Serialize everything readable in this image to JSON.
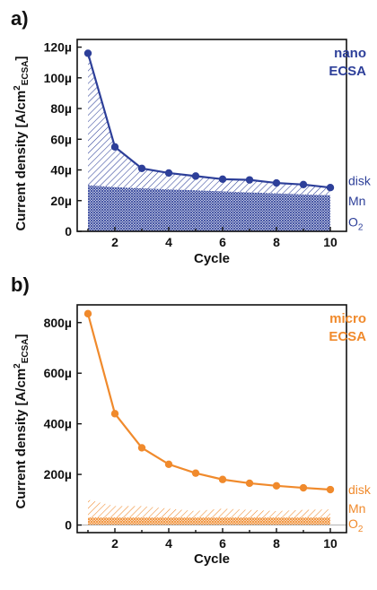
{
  "chart_data": [
    {
      "panel_label": "a)",
      "type": "line",
      "xlabel": "Cycle",
      "ylabel": "Current density [A/cm²ECSA]",
      "ylabel_parts": {
        "main": "Current density [A/cm",
        "sup": "2",
        "sub": "ECSA",
        "close": "]"
      },
      "xlim": [
        0.6,
        10.6
      ],
      "ylim": [
        0,
        125
      ],
      "x_ticks": [
        2,
        4,
        6,
        8,
        10
      ],
      "y_ticks": [
        0,
        20,
        40,
        60,
        80,
        100,
        120
      ],
      "y_tick_labels": [
        "0",
        "20µ",
        "40µ",
        "60µ",
        "80µ",
        "100µ",
        "120µ"
      ],
      "legend_lines": [
        "nano",
        "ECSA"
      ],
      "legend_position": "top-right",
      "color": "#2d3f99",
      "series": [
        {
          "x": [
            1,
            2,
            3,
            4,
            5,
            6,
            7,
            8,
            9,
            10
          ],
          "y": [
            116,
            55,
            41,
            38,
            36,
            34,
            33.5,
            31.5,
            30.5,
            28.5
          ]
        }
      ],
      "area_layers": [
        {
          "label": "disk",
          "y": [
            116,
            55,
            41,
            38,
            36,
            34,
            33.5,
            31.5,
            30.5,
            28.5
          ],
          "pattern": "diagonal-hatch"
        },
        {
          "label": "Mn",
          "y": [
            30,
            28.8,
            28,
            27.3,
            26.7,
            26,
            25.3,
            24.7,
            24,
            23.5
          ],
          "pattern": "diagonal-hatch-dense"
        },
        {
          "label": "O2",
          "y": [
            30,
            28.8,
            28,
            27.3,
            26.7,
            26,
            25.3,
            24.7,
            24,
            23.5
          ],
          "pattern": "crosshatch"
        }
      ],
      "area_labels": [
        {
          "text": "disk",
          "y_pos": 33
        },
        {
          "text": "Mn",
          "y_pos": 20
        },
        {
          "text": "O",
          "sub": "2",
          "y_pos": 6
        }
      ]
    },
    {
      "panel_label": "b)",
      "type": "line",
      "xlabel": "Cycle",
      "ylabel": "Current density [A/cm²ECSA]",
      "ylabel_parts": {
        "main": "Current density [A/cm",
        "sup": "2",
        "sub": "ECSA",
        "close": "]"
      },
      "xlim": [
        0.6,
        10.6
      ],
      "ylim": [
        -30,
        870
      ],
      "x_ticks": [
        2,
        4,
        6,
        8,
        10
      ],
      "y_ticks": [
        0,
        200,
        400,
        600,
        800
      ],
      "y_tick_labels": [
        "0",
        "200µ",
        "400µ",
        "600µ",
        "800µ"
      ],
      "legend_lines": [
        "micro",
        "ECSA"
      ],
      "legend_position": "top-right",
      "color": "#f08a2c",
      "series": [
        {
          "x": [
            1,
            2,
            3,
            4,
            5,
            6,
            7,
            8,
            9,
            10
          ],
          "y": [
            835,
            440,
            305,
            240,
            205,
            180,
            165,
            155,
            147,
            140
          ]
        }
      ],
      "area_layers": [
        {
          "label": "Mn",
          "y": [
            100,
            75,
            75,
            65,
            55,
            65,
            60,
            55,
            60,
            62
          ],
          "pattern": "diagonal-hatch"
        },
        {
          "label": "O2",
          "y": [
            30,
            30,
            30,
            30,
            30,
            30,
            30,
            30,
            30,
            30
          ],
          "pattern": "crosshatch"
        }
      ],
      "area_labels": [
        {
          "text": "disk",
          "y_pos": 140
        },
        {
          "text": "Mn",
          "y_pos": 65
        },
        {
          "text": "O",
          "sub": "2",
          "y_pos": 5
        }
      ]
    }
  ]
}
